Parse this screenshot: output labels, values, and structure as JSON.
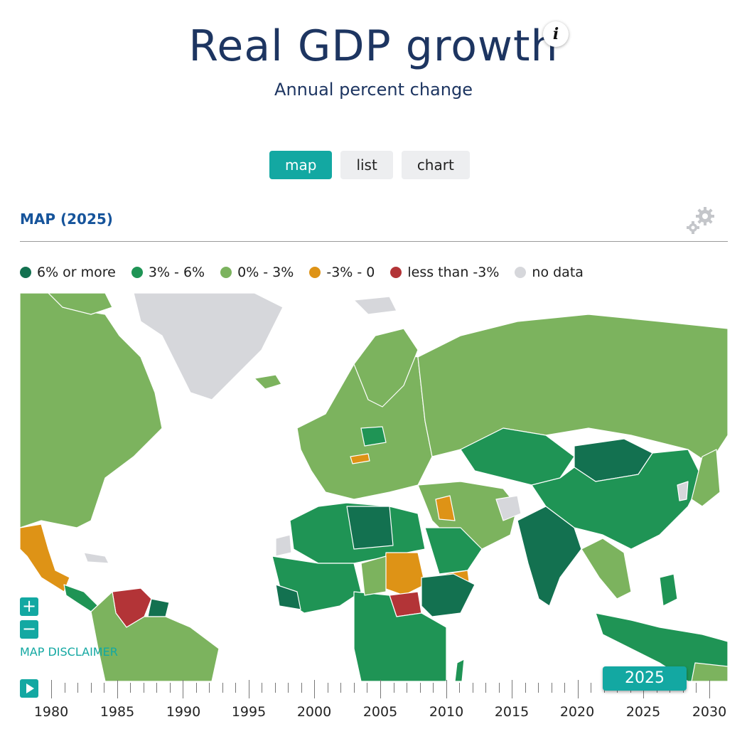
{
  "header": {
    "title": "Real GDP growth",
    "subtitle": "Annual percent change",
    "info_icon": "i"
  },
  "tabs": [
    {
      "label": "map",
      "active": true
    },
    {
      "label": "list",
      "active": false
    },
    {
      "label": "chart",
      "active": false
    }
  ],
  "section": {
    "title": "MAP (2025)"
  },
  "legend": [
    {
      "label": "6% or more",
      "color": "#137150"
    },
    {
      "label": "3% - 6%",
      "color": "#1f9455"
    },
    {
      "label": "0% - 3%",
      "color": "#7cb35e"
    },
    {
      "label": "-3% - 0",
      "color": "#de9316"
    },
    {
      "label": "less than -3%",
      "color": "#b33437"
    },
    {
      "label": "no data",
      "color": "#d6d7db"
    }
  ],
  "map": {
    "zoom_in": "+",
    "zoom_out": "−",
    "disclaimer": "MAP DISCLAIMER"
  },
  "timeline": {
    "years": [
      "1980",
      "1985",
      "1990",
      "1995",
      "2000",
      "2005",
      "2010",
      "2015",
      "2020",
      "2025",
      "2030"
    ],
    "current_year": "2025"
  },
  "icons": {
    "info": "info-icon",
    "settings": "gear-icon",
    "play": "play-icon"
  }
}
